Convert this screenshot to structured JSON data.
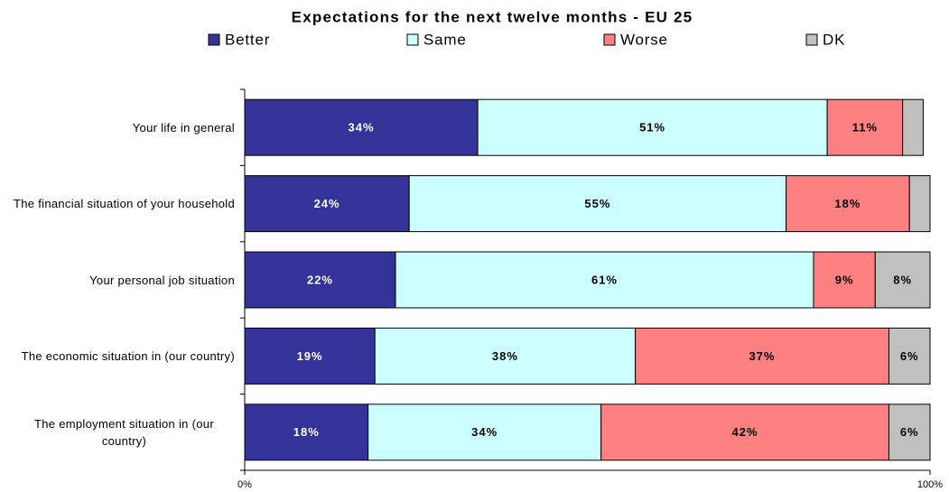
{
  "chart_data": {
    "type": "stacked-bar-horizontal",
    "title": "Expectations for the next twelve months - EU 25",
    "categories": [
      "Your life in general",
      "The financial situation of your household",
      "Your personal job situation",
      "The economic situation in (our country)",
      "The employment situation in (our country)"
    ],
    "series": [
      {
        "name": "Better",
        "color": "#333399",
        "values": [
          34,
          24,
          22,
          19,
          18
        ],
        "value_labels": [
          "34%",
          "24%",
          "22%",
          "19%",
          "18%"
        ]
      },
      {
        "name": "Same",
        "color": "#ccffff",
        "values": [
          51,
          55,
          61,
          38,
          34
        ],
        "value_labels": [
          "51%",
          "55%",
          "61%",
          "38%",
          "34%"
        ]
      },
      {
        "name": "Worse",
        "color": "#ff8080",
        "values": [
          11,
          18,
          9,
          37,
          42
        ],
        "value_labels": [
          "11%",
          "18%",
          "9%",
          "37%",
          "42%"
        ]
      },
      {
        "name": "DK",
        "color": "#c0c0c0",
        "values": [
          3,
          3,
          8,
          6,
          6
        ],
        "value_labels": [
          null,
          null,
          "8%",
          "6%",
          "6%"
        ]
      }
    ],
    "xlim": [
      0,
      100
    ],
    "xticks": [
      {
        "value": 0,
        "label": "0%"
      },
      {
        "value": 100,
        "label": "100%"
      }
    ],
    "legend": "top"
  }
}
